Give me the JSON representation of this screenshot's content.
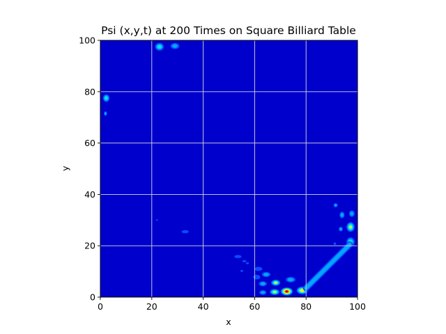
{
  "chart_data": {
    "type": "heatmap",
    "title": "Psi (x,y,t) at 200 Times on Square Billiard Table",
    "xlabel": "x",
    "ylabel": "y",
    "xlim": [
      0,
      100
    ],
    "ylim": [
      0,
      100
    ],
    "xticks": [
      0,
      20,
      40,
      60,
      80,
      100
    ],
    "yticks": [
      0,
      20,
      40,
      60,
      80,
      100
    ],
    "grid": true,
    "colormap": [
      "#0000cc",
      "#0a4cff",
      "#00a8ff",
      "#00e8e8",
      "#b8ff40",
      "#ffee00",
      "#ff3300",
      "#c00000"
    ],
    "blobs": [
      {
        "x": 72.5,
        "y": 2.2,
        "rx": 2.4,
        "ry": 1.6,
        "peak": 7
      },
      {
        "x": 78.5,
        "y": 2.6,
        "rx": 2.2,
        "ry": 1.5,
        "peak": 5
      },
      {
        "x": 67.8,
        "y": 2.0,
        "rx": 1.9,
        "ry": 1.2,
        "peak": 4
      },
      {
        "x": 68.2,
        "y": 5.6,
        "rx": 1.8,
        "ry": 1.2,
        "peak": 4
      },
      {
        "x": 63.2,
        "y": 1.8,
        "rx": 1.4,
        "ry": 0.9,
        "peak": 2
      },
      {
        "x": 63.2,
        "y": 5.2,
        "rx": 1.6,
        "ry": 1.0,
        "peak": 2
      },
      {
        "x": 74.0,
        "y": 6.8,
        "rx": 1.9,
        "ry": 1.1,
        "peak": 2
      },
      {
        "x": 60.8,
        "y": 7.8,
        "rx": 1.4,
        "ry": 0.9,
        "peak": 1
      },
      {
        "x": 64.5,
        "y": 8.8,
        "rx": 1.7,
        "ry": 1.0,
        "peak": 2
      },
      {
        "x": 61.5,
        "y": 11.0,
        "rx": 1.5,
        "ry": 0.8,
        "peak": 1
      },
      {
        "x": 53.5,
        "y": 15.8,
        "rx": 1.4,
        "ry": 0.6,
        "peak": 1
      },
      {
        "x": 56.0,
        "y": 14.0,
        "rx": 0.8,
        "ry": 0.4,
        "peak": 1
      },
      {
        "x": 57.2,
        "y": 13.2,
        "rx": 0.6,
        "ry": 0.4,
        "peak": 1
      },
      {
        "x": 55.0,
        "y": 10.2,
        "rx": 0.5,
        "ry": 0.4,
        "peak": 1
      },
      {
        "x": 33.0,
        "y": 25.5,
        "rx": 1.4,
        "ry": 0.6,
        "peak": 1
      },
      {
        "x": 22.0,
        "y": 30.0,
        "rx": 0.4,
        "ry": 0.3,
        "peak": 1
      },
      {
        "x": 97.3,
        "y": 27.3,
        "rx": 1.6,
        "ry": 1.9,
        "peak": 4
      },
      {
        "x": 97.3,
        "y": 21.5,
        "rx": 1.6,
        "ry": 1.8,
        "peak": 3
      },
      {
        "x": 97.8,
        "y": 32.5,
        "rx": 1.1,
        "ry": 1.3,
        "peak": 2
      },
      {
        "x": 94.0,
        "y": 32.0,
        "rx": 1.0,
        "ry": 1.3,
        "peak": 2
      },
      {
        "x": 93.5,
        "y": 26.5,
        "rx": 0.8,
        "ry": 0.9,
        "peak": 2
      },
      {
        "x": 91.5,
        "y": 35.8,
        "rx": 0.8,
        "ry": 0.8,
        "peak": 2
      },
      {
        "x": 91.2,
        "y": 20.8,
        "rx": 0.5,
        "ry": 0.5,
        "peak": 1
      },
      {
        "x": 2.3,
        "y": 77.5,
        "rx": 1.3,
        "ry": 1.5,
        "peak": 3
      },
      {
        "x": 2.0,
        "y": 71.5,
        "rx": 0.6,
        "ry": 0.9,
        "peak": 2
      },
      {
        "x": 23.0,
        "y": 97.5,
        "rx": 1.7,
        "ry": 1.5,
        "peak": 3
      },
      {
        "x": 29.0,
        "y": 97.8,
        "rx": 1.7,
        "ry": 1.2,
        "peak": 2
      }
    ],
    "ridge": {
      "from": [
        80,
        3.5
      ],
      "to": [
        97,
        20.5
      ],
      "halfwidth": 1.2,
      "peak": 2
    }
  }
}
